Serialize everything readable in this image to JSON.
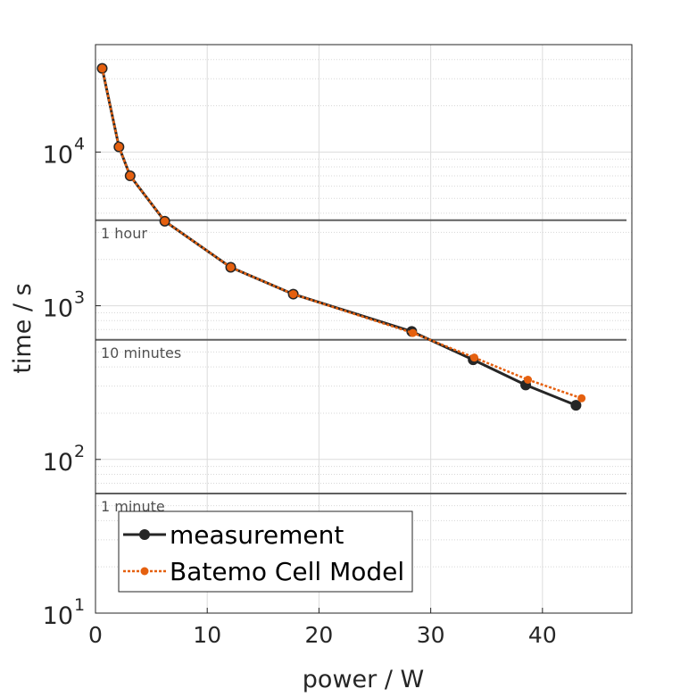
{
  "chart_data": {
    "type": "line",
    "title": "",
    "xlabel": "power / W",
    "ylabel": "time / s",
    "xlim": [
      0,
      48
    ],
    "ylim": [
      10,
      50000
    ],
    "yscale": "log",
    "grid": true,
    "legend_position": "bottom-left",
    "x_ticks": [
      0,
      10,
      20,
      30,
      40
    ],
    "x_tick_labels": [
      "0",
      "10",
      "20",
      "30",
      "40"
    ],
    "y_ticks": [
      {
        "value": 10,
        "base": "10",
        "exp": "1"
      },
      {
        "value": 100,
        "base": "10",
        "exp": "2"
      },
      {
        "value": 1000,
        "base": "10",
        "exp": "3"
      },
      {
        "value": 10000,
        "base": "10",
        "exp": "4"
      }
    ],
    "reference_lines": [
      {
        "value": 3600,
        "label": "1 hour"
      },
      {
        "value": 600,
        "label": "10 minutes"
      },
      {
        "value": 60,
        "label": "1 minute"
      }
    ],
    "series": [
      {
        "name": "measurement",
        "color": "#262626",
        "style": "solid",
        "x": [
          0.6,
          2.1,
          3.1,
          6.2,
          12.1,
          17.7,
          28.3,
          33.8,
          38.5,
          43.0
        ],
        "y": [
          35000,
          10800,
          7000,
          3550,
          1780,
          1190,
          680,
          445,
          305,
          225
        ]
      },
      {
        "name": "Batemo Cell Model",
        "color": "#e5600f",
        "style": "dotted",
        "x": [
          0.6,
          2.1,
          3.1,
          6.2,
          12.1,
          17.7,
          28.4,
          33.9,
          38.7,
          43.5
        ],
        "y": [
          35000,
          10800,
          7000,
          3550,
          1780,
          1190,
          665,
          460,
          330,
          250
        ]
      }
    ]
  }
}
